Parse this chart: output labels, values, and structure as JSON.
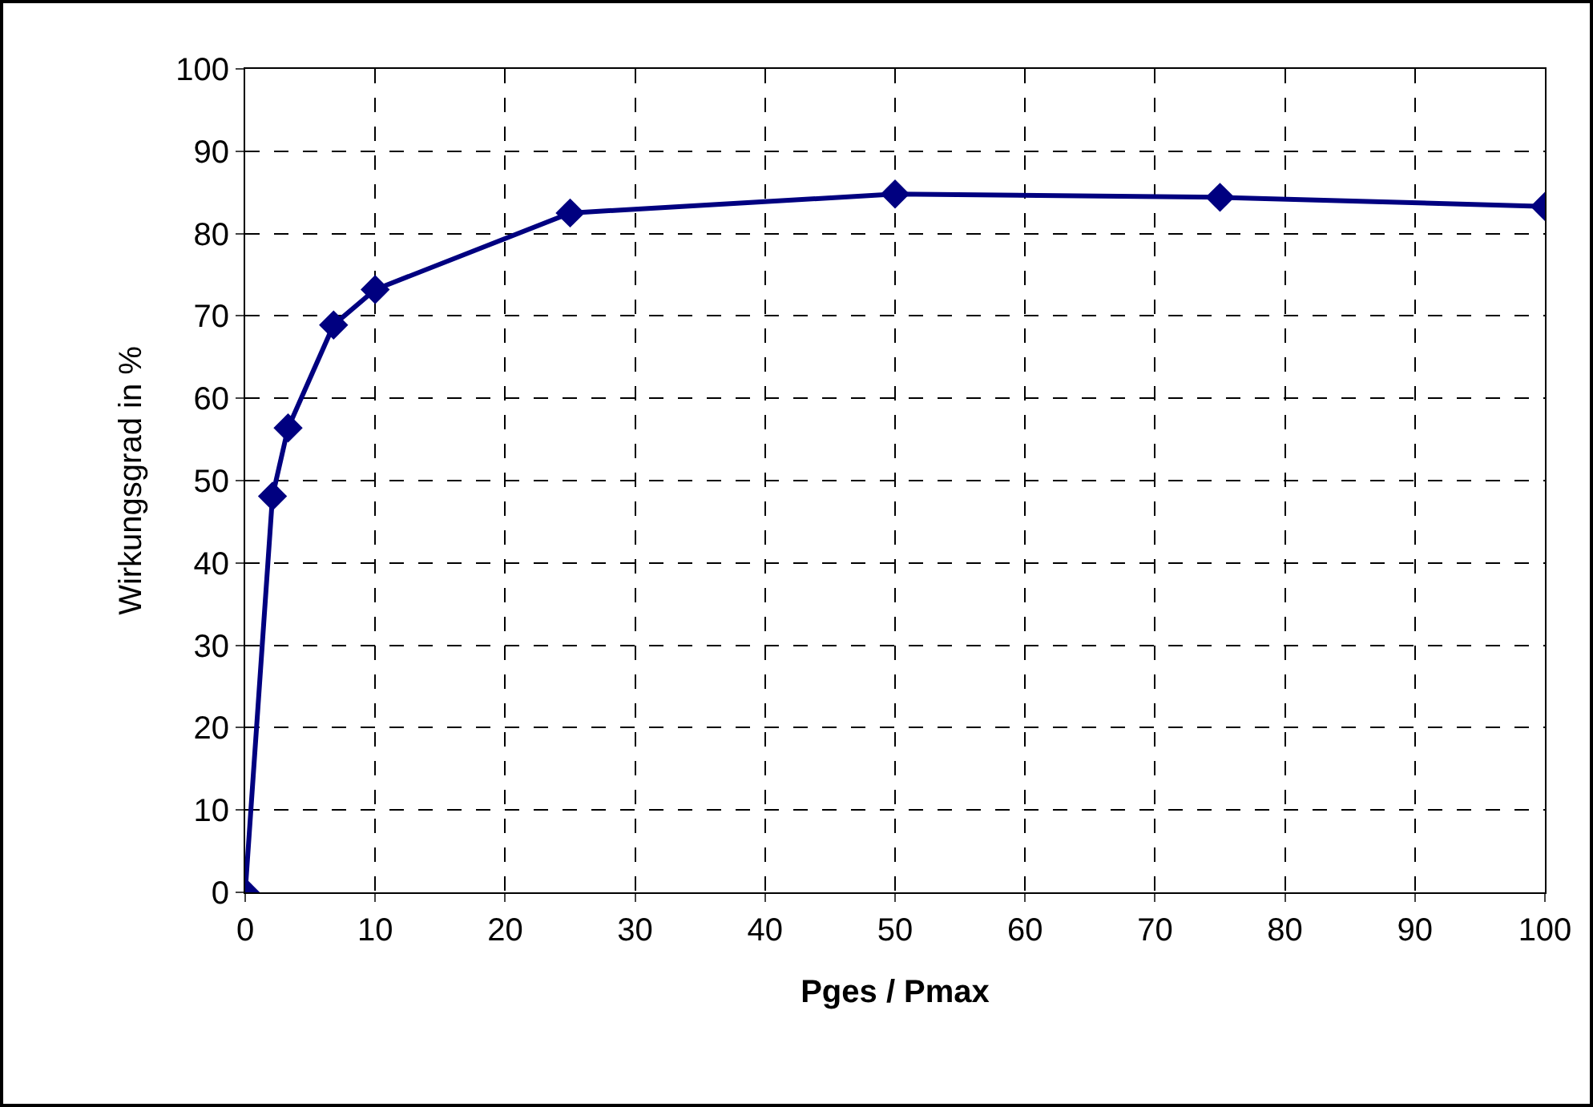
{
  "chart_data": {
    "type": "line",
    "xlabel": "Pges / Pmax",
    "ylabel": "Wirkungsgrad in %",
    "x": [
      0,
      2.1,
      3.3,
      6.8,
      10,
      25,
      50,
      75,
      100
    ],
    "series": [
      {
        "color": "#000080",
        "values": [
          0,
          48.1,
          56.4,
          68.9,
          73.2,
          82.5,
          84.8,
          84.4,
          83.3
        ]
      }
    ],
    "xlim": [
      0,
      100
    ],
    "xticks": [
      0,
      10,
      20,
      30,
      40,
      50,
      60,
      70,
      80,
      90,
      100
    ],
    "ylim": [
      0,
      100
    ],
    "yticks": [
      0,
      10,
      20,
      30,
      40,
      50,
      60,
      70,
      80,
      90,
      100
    ],
    "grid": true,
    "legend": false,
    "marker": "diamond",
    "line_style": "solid"
  }
}
